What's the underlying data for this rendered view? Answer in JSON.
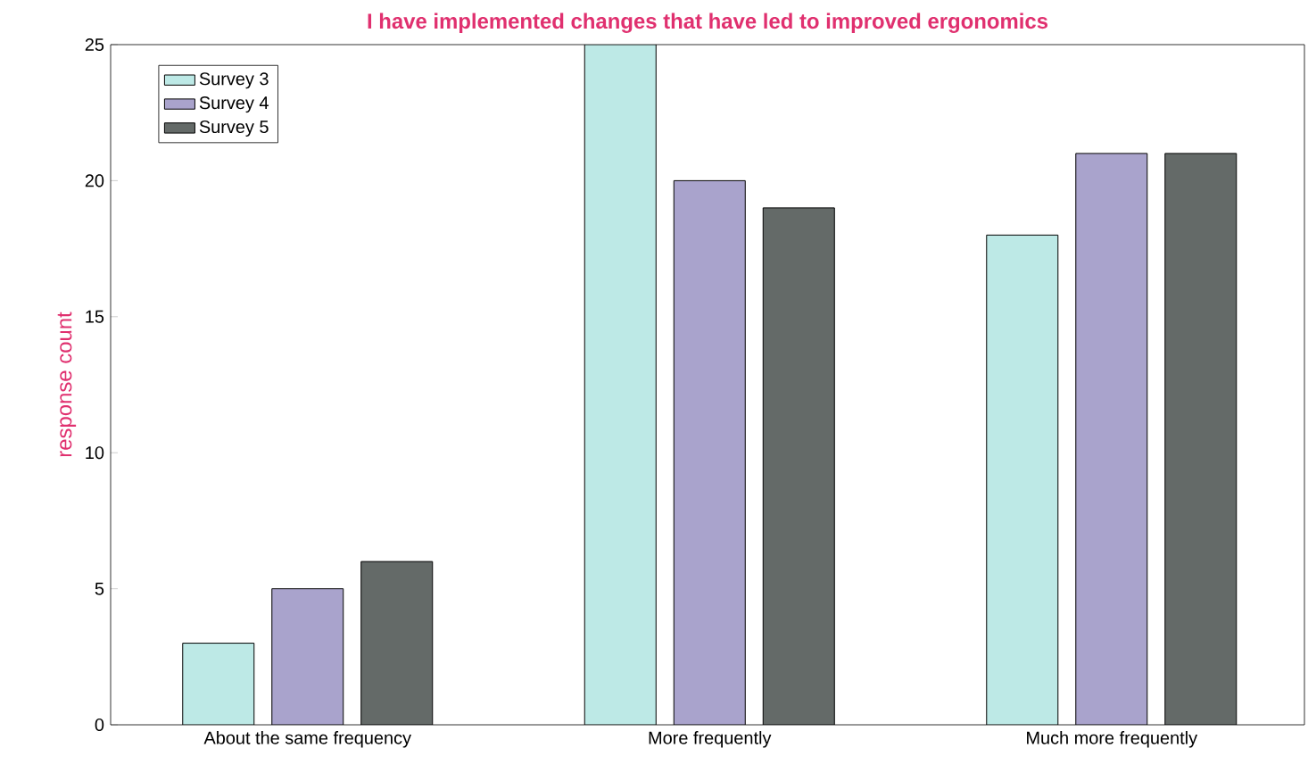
{
  "chart_data": {
    "type": "bar",
    "title": "I have implemented changes that have led to improved ergonomics",
    "ylabel": "response count",
    "categories": [
      "About the same frequency",
      "More frequently",
      "Much more frequently"
    ],
    "series": [
      {
        "name": "Survey 3",
        "color": "#bde9e6",
        "values": [
          3,
          25,
          18
        ]
      },
      {
        "name": "Survey 4",
        "color": "#a9a3cc",
        "values": [
          5,
          20,
          21
        ]
      },
      {
        "name": "Survey 5",
        "color": "#646a68",
        "values": [
          6,
          19,
          21
        ]
      }
    ],
    "ylim": [
      0,
      25
    ],
    "yticks": [
      0,
      5,
      10,
      15,
      20,
      25
    ],
    "legend": "top left",
    "grid": false
  }
}
